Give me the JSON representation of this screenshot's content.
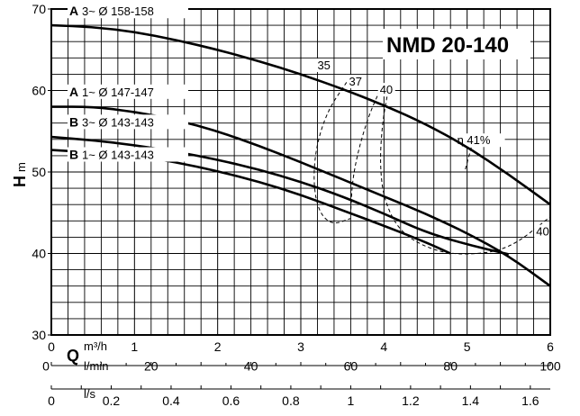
{
  "chart_data": {
    "type": "line",
    "title": "NMD 20-140",
    "ylabel": {
      "letter": "H",
      "unit": "m"
    },
    "xlabel_flow": {
      "letter": "Q",
      "unit": "m³/h"
    },
    "x_lmin_unit": "l/min",
    "x_ls_unit": "l/s",
    "xlim": [
      0,
      6
    ],
    "ylim": [
      30,
      70
    ],
    "grid": true,
    "y_ticks": [
      "30",
      "40",
      "50",
      "60",
      "70"
    ],
    "x_ticks_m3h": [
      "0",
      "1",
      "2",
      "3",
      "4",
      "5",
      "6"
    ],
    "x_ticks_lmin": [
      {
        "value": 0,
        "label": "0"
      },
      {
        "value": 20,
        "label": "20"
      },
      {
        "value": 40,
        "label": "40"
      },
      {
        "value": 60,
        "label": "60"
      },
      {
        "value": 80,
        "label": "80"
      },
      {
        "value": 100,
        "label": "100"
      }
    ],
    "x_ticks_ls": [
      {
        "value": 0,
        "label": "0"
      },
      {
        "value": 0.2,
        "label": "0.2"
      },
      {
        "value": 0.4,
        "label": "0.4"
      },
      {
        "value": 0.6,
        "label": "0.6"
      },
      {
        "value": 0.8,
        "label": "0.8"
      },
      {
        "value": 1.0,
        "label": "1"
      },
      {
        "value": 1.2,
        "label": "1.2"
      },
      {
        "value": 1.4,
        "label": "1.4"
      },
      {
        "value": 1.6,
        "label": "1.6"
      }
    ],
    "series": [
      {
        "name_bold": "A",
        "name_rest": "3~ Ø 158-158",
        "x": [
          0,
          0.5,
          1,
          1.5,
          2,
          2.5,
          3,
          3.5,
          4,
          4.5,
          5,
          5.5,
          6
        ],
        "y": [
          68,
          67.8,
          67.2,
          66.2,
          65,
          63.6,
          62,
          60.2,
          58.2,
          55.9,
          53.1,
          49.7,
          46
        ]
      },
      {
        "name_bold": "A",
        "name_rest": "1~ Ø 147-147",
        "x": [
          0,
          0.5,
          1,
          1.5,
          2,
          2.5,
          3,
          3.5,
          4,
          4.5,
          5,
          5.5,
          6
        ],
        "y": [
          58,
          58,
          57.4,
          56.4,
          55,
          53.2,
          51.2,
          49.1,
          47,
          44.9,
          42.5,
          39.7,
          36
        ]
      },
      {
        "name_bold": "B",
        "name_rest": "3~ Ø 143-143",
        "x": [
          0,
          0.5,
          1,
          1.5,
          2,
          2.5,
          3,
          3.5,
          4,
          4.5,
          5,
          5.5
        ],
        "y": [
          54.3,
          53.9,
          53.3,
          52.5,
          51.5,
          50.3,
          48.8,
          47,
          44.9,
          42.6,
          41.1,
          39.9
        ]
      },
      {
        "name_bold": "B",
        "name_rest": "1~ Ø 143-143",
        "x": [
          0,
          0.5,
          1,
          1.5,
          2,
          2.5,
          3,
          3.5,
          4,
          4.5,
          4.8
        ],
        "y": [
          52.7,
          52.4,
          52,
          51.2,
          50.1,
          48.8,
          47.2,
          45.3,
          43.4,
          41.4,
          40
        ]
      }
    ],
    "efficiency_curves": [
      {
        "label": "35",
        "x": [
          3.55,
          3.32,
          3.18,
          3.15,
          3.22,
          3.38,
          3.6
        ],
        "y": [
          61,
          57.5,
          53,
          48.5,
          45,
          43.5,
          44.3
        ]
      },
      {
        "label": "37",
        "x": [
          3.95,
          3.82,
          3.7,
          3.62,
          3.6
        ],
        "y": [
          60,
          57,
          53,
          49,
          45
        ]
      },
      {
        "label": "40",
        "x": [
          4.05,
          3.98,
          3.95,
          4.0,
          4.2,
          4.6,
          5.0,
          5.5,
          6.0
        ],
        "y": [
          60,
          56,
          51,
          46.5,
          42.5,
          40.3,
          39.8,
          40.5,
          44.5
        ]
      },
      {
        "label": "41%",
        "label_prefix": "η",
        "x": [
          5.05,
          4.97
        ],
        "y": [
          53,
          50
        ]
      }
    ],
    "efficiency_label_right": "40"
  }
}
